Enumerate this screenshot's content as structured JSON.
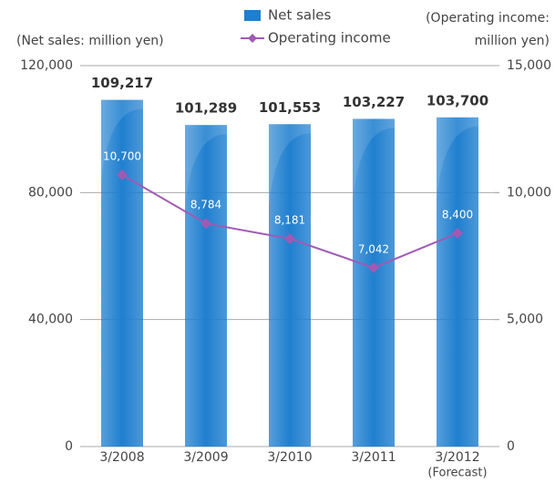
{
  "chart_data": {
    "type": "bar_line",
    "ylabel": "(Net sales: million yen)",
    "y2label": [
      "(Operating income:",
      "million yen)"
    ],
    "categories": [
      "3/2008",
      "3/2009",
      "3/2010",
      "3/2011",
      "3/2012"
    ],
    "annotations": [
      "(Forecast)"
    ],
    "series": [
      {
        "name": "Net sales",
        "type": "bar",
        "color": "#1f7fcf",
        "values": [
          109217,
          101289,
          101553,
          103227,
          103700
        ],
        "value_labels": [
          "109,217",
          "101,289",
          "101,553",
          "103,227",
          "103,700"
        ]
      },
      {
        "name": "Operating income",
        "type": "line",
        "axis": "y2",
        "color": "#a05ab4",
        "values": [
          10700,
          8784,
          8181,
          7042,
          8400
        ],
        "value_labels": [
          "10,700",
          "8,784",
          "8,181",
          "7,042",
          "8,400"
        ]
      }
    ],
    "ylim": [
      0,
      120000
    ],
    "yticks": [
      0,
      {
        "value": 40000,
        "label": "40,000"
      },
      {
        "value": 80000,
        "label": "80,000"
      },
      {
        "value": 120000,
        "label": "120,000"
      }
    ],
    "y2lim": [
      0,
      15000
    ],
    "y2ticks": [
      0,
      {
        "value": 5000,
        "label": "5,000"
      },
      {
        "value": 10000,
        "label": "10,000"
      },
      {
        "value": 15000,
        "label": "15,000"
      }
    ],
    "grid": true,
    "legend": "top"
  }
}
